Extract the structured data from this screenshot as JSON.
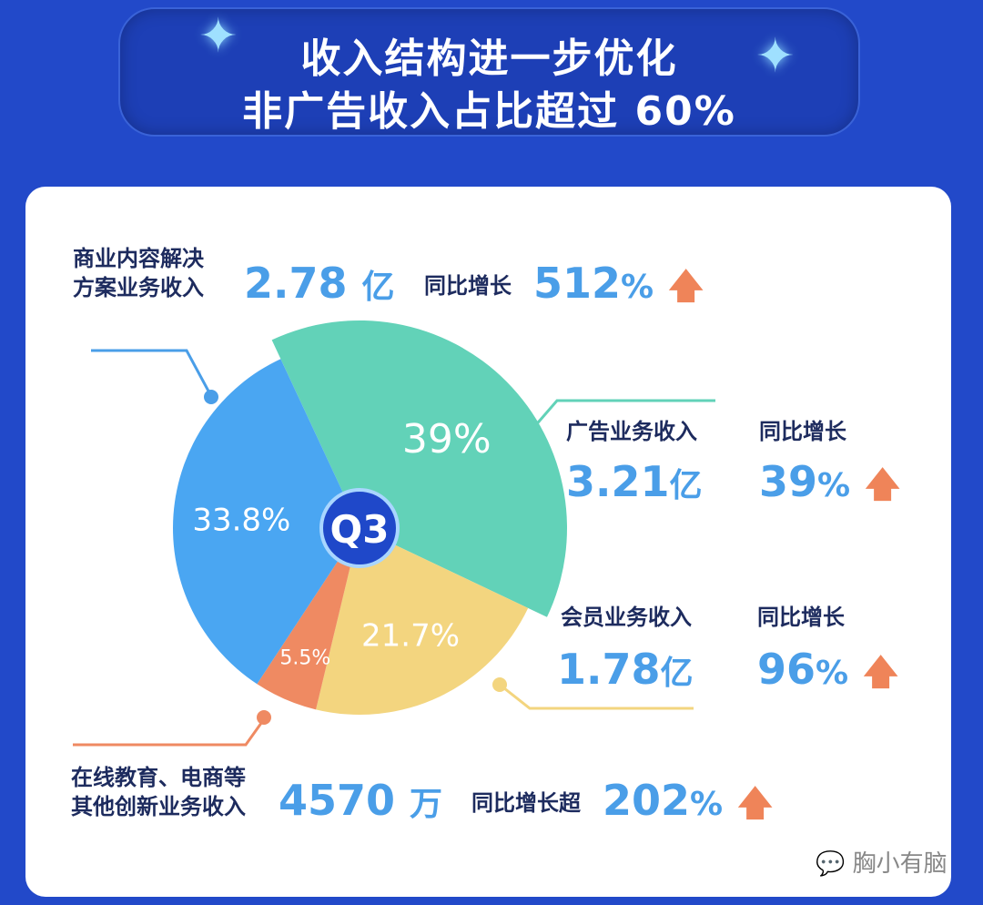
{
  "header": {
    "title_line1": "收入结构进一步优化",
    "title_line2": "非广告收入占比超过 60%"
  },
  "chart_data": {
    "type": "pie",
    "center_label": "Q3",
    "slices": [
      {
        "name": "广告业务收入",
        "value": 39,
        "label": "39%",
        "color": "#62d2b8"
      },
      {
        "name": "会员业务收入",
        "value": 21.7,
        "label": "21.7%",
        "color": "#f3d57f"
      },
      {
        "name": "在线教育、电商等其他创新业务收入",
        "value": 5.5,
        "label": "5.5%",
        "color": "#ef8a62"
      },
      {
        "name": "商业内容解决方案业务收入",
        "value": 33.8,
        "label": "33.8%",
        "color": "#4aa6f2"
      }
    ]
  },
  "callouts": {
    "commercial": {
      "label_l1": "商业内容解决",
      "label_l2": "方案业务收入",
      "amount": "2.78",
      "unit": "亿",
      "growth_label": "同比增长",
      "growth": "512",
      "pct": "%"
    },
    "ads": {
      "label": "广告业务收入",
      "amount": "3.21",
      "unit": "亿",
      "growth_label": "同比增长",
      "growth": "39",
      "pct": "%"
    },
    "member": {
      "label": "会员业务收入",
      "amount": "1.78",
      "unit": "亿",
      "growth_label": "同比增长",
      "growth": "96",
      "pct": "%"
    },
    "other": {
      "label_l1": "在线教育、电商等",
      "label_l2": "其他创新业务收入",
      "amount": "4570",
      "unit": "万",
      "growth_label": "同比增长超",
      "growth": "202",
      "pct": "%"
    }
  },
  "icons": {
    "arrow": "arrow-up-icon",
    "sparkle": "sparkle-icon"
  },
  "watermark": "胸小有脑"
}
